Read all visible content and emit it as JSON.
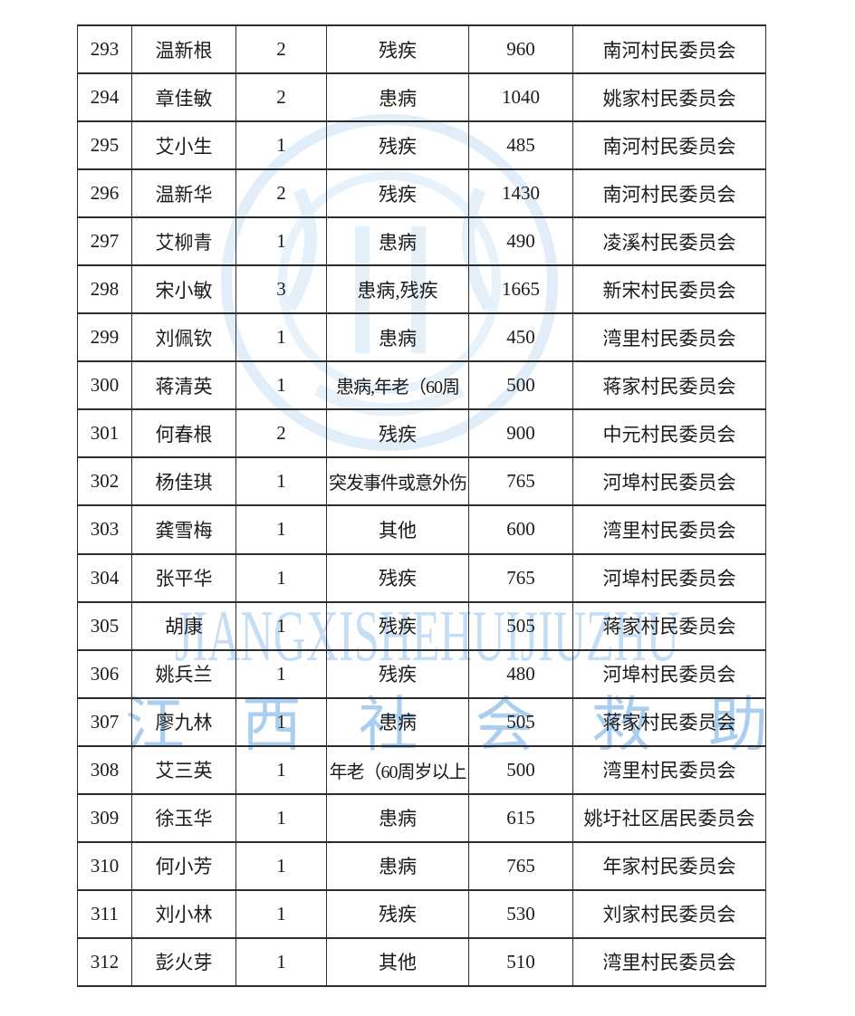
{
  "page": {
    "background": "#ffffff",
    "text_color": "#1b1b1b",
    "border_color": "#2d2d2d"
  },
  "watermark": {
    "latin_text": "JIANGXISHEHUIJIUZHU",
    "chinese_text": "江西社会救助",
    "latin_color": "#c5def5",
    "chinese_color": "#a9cef0",
    "seal_color": "#dcebf8"
  },
  "table": {
    "rows": [
      {
        "id": "293",
        "name": "温新根",
        "count": "2",
        "reason": "残疾",
        "amount": "960",
        "committee": "南河村民委员会"
      },
      {
        "id": "294",
        "name": "章佳敏",
        "count": "2",
        "reason": "患病",
        "amount": "1040",
        "committee": "姚家村民委员会"
      },
      {
        "id": "295",
        "name": "艾小生",
        "count": "1",
        "reason": "残疾",
        "amount": "485",
        "committee": "南河村民委员会"
      },
      {
        "id": "296",
        "name": "温新华",
        "count": "2",
        "reason": "残疾",
        "amount": "1430",
        "committee": "南河村民委员会"
      },
      {
        "id": "297",
        "name": "艾柳青",
        "count": "1",
        "reason": "患病",
        "amount": "490",
        "committee": "凌溪村民委员会"
      },
      {
        "id": "298",
        "name": "宋小敏",
        "count": "3",
        "reason": "患病,残疾",
        "amount": "1665",
        "committee": "新宋村民委员会"
      },
      {
        "id": "299",
        "name": "刘佩钦",
        "count": "1",
        "reason": "患病",
        "amount": "450",
        "committee": "湾里村民委员会"
      },
      {
        "id": "300",
        "name": "蒋清英",
        "count": "1",
        "reason": "患病,年老（60周",
        "amount": "500",
        "committee": "蒋家村民委员会"
      },
      {
        "id": "301",
        "name": "何春根",
        "count": "2",
        "reason": "残疾",
        "amount": "900",
        "committee": "中元村民委员会"
      },
      {
        "id": "302",
        "name": "杨佳琪",
        "count": "1",
        "reason": "突发事件或意外伤",
        "amount": "765",
        "committee": "河埠村民委员会"
      },
      {
        "id": "303",
        "name": "龚雪梅",
        "count": "1",
        "reason": "其他",
        "amount": "600",
        "committee": "湾里村民委员会"
      },
      {
        "id": "304",
        "name": "张平华",
        "count": "1",
        "reason": "残疾",
        "amount": "765",
        "committee": "河埠村民委员会"
      },
      {
        "id": "305",
        "name": "胡康",
        "count": "1",
        "reason": "残疾",
        "amount": "505",
        "committee": "蒋家村民委员会"
      },
      {
        "id": "306",
        "name": "姚兵兰",
        "count": "1",
        "reason": "残疾",
        "amount": "480",
        "committee": "河埠村民委员会"
      },
      {
        "id": "307",
        "name": "廖九林",
        "count": "1",
        "reason": "患病",
        "amount": "505",
        "committee": "蒋家村民委员会"
      },
      {
        "id": "308",
        "name": "艾三英",
        "count": "1",
        "reason": "年老（60周岁以上",
        "amount": "500",
        "committee": "湾里村民委员会"
      },
      {
        "id": "309",
        "name": "徐玉华",
        "count": "1",
        "reason": "患病",
        "amount": "615",
        "committee": "姚圩社区居民委员会"
      },
      {
        "id": "310",
        "name": "何小芳",
        "count": "1",
        "reason": "患病",
        "amount": "765",
        "committee": "年家村民委员会"
      },
      {
        "id": "311",
        "name": "刘小林",
        "count": "1",
        "reason": "残疾",
        "amount": "530",
        "committee": "刘家村民委员会"
      },
      {
        "id": "312",
        "name": "彭火芽",
        "count": "1",
        "reason": "其他",
        "amount": "510",
        "committee": "湾里村民委员会"
      }
    ]
  }
}
